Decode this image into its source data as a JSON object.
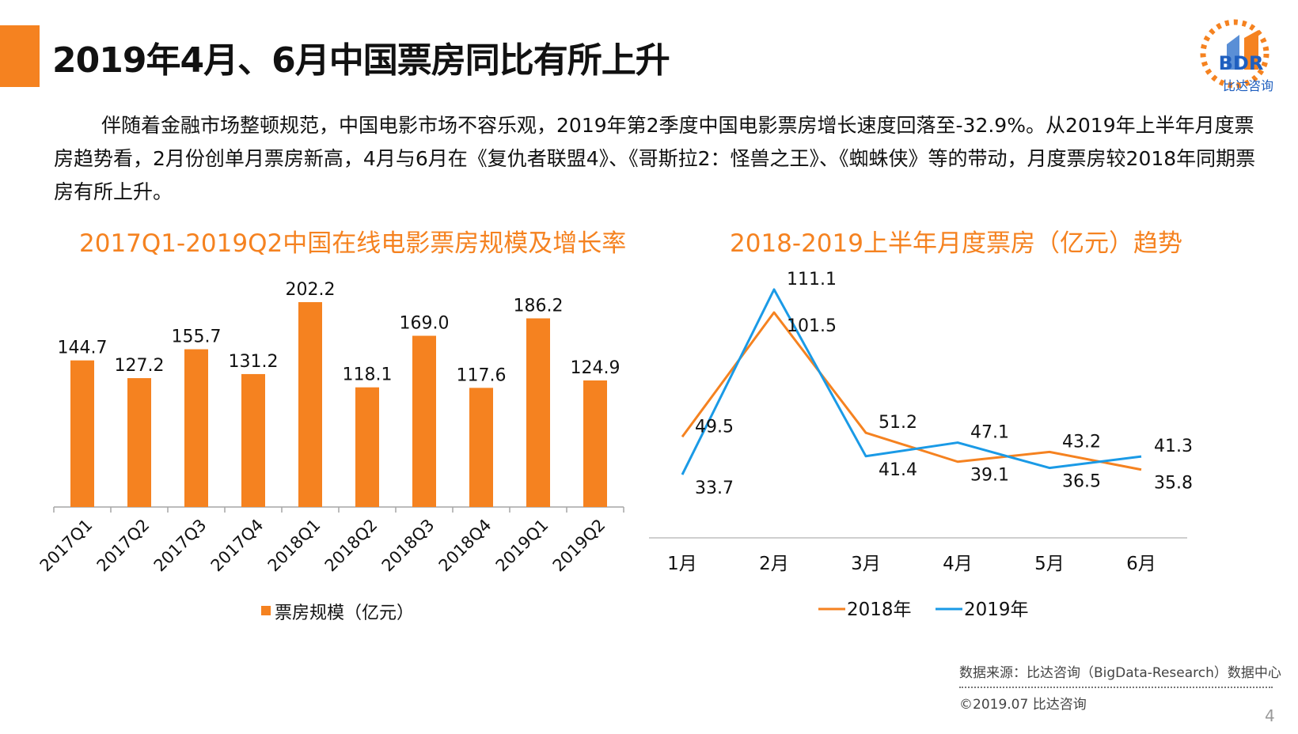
{
  "slide": {
    "title": "2019年4月、6月中国票房同比有所上升",
    "paragraph": "伴随着金融市场整顿规范，中国电影市场不容乐观，2019年第2季度中国电影票房增长速度回落至-32.9%。从2019年上半年月度票房趋势看，2月份创单月票房新高，4月与6月在《复仇者联盟4》、《哥斯拉2：怪兽之王》、《蜘蛛侠》等的带动，月度票房较2018年同期票房有所上升。",
    "logo_text": "BDR",
    "logo_sub": "比达咨询",
    "source": "数据来源：比达咨询（BigData-Research）数据中心",
    "copyright": "©2019.07 比达咨询",
    "page_number": "4",
    "accent_color": "#f58220",
    "blue_color": "#1a9ae6"
  },
  "chart_data": [
    {
      "type": "bar",
      "title": "2017Q1-2019Q2中国在线电影票房规模及增长率",
      "categories": [
        "2017Q1",
        "2017Q2",
        "2017Q3",
        "2017Q4",
        "2018Q1",
        "2018Q2",
        "2018Q3",
        "2018Q4",
        "2019Q1",
        "2019Q2"
      ],
      "series": [
        {
          "name": "票房规模（亿元）",
          "values": [
            144.7,
            127.2,
            155.7,
            131.2,
            202.2,
            118.1,
            169.0,
            117.6,
            186.2,
            124.9
          ],
          "color": "#f58220"
        }
      ],
      "value_labels": [
        "144.7",
        "127.2",
        "155.7",
        "131.2",
        "202.2",
        "118.1",
        "169.0",
        "117.6",
        "186.2",
        "124.9"
      ],
      "ylim": [
        0,
        202.2
      ],
      "legend": "bottom"
    },
    {
      "type": "line",
      "title": "2018-2019上半年月度票房（亿元）趋势",
      "categories": [
        "1月",
        "2月",
        "3月",
        "4月",
        "5月",
        "6月"
      ],
      "series": [
        {
          "name": "2018年",
          "values": [
            49.5,
            101.5,
            51.2,
            39.1,
            43.2,
            35.8
          ],
          "color": "#f58220",
          "labels": [
            "49.5",
            "101.5",
            "51.2",
            "39.1",
            "43.2",
            "35.8"
          ]
        },
        {
          "name": "2019年",
          "values": [
            33.7,
            111.1,
            41.4,
            47.1,
            36.5,
            41.3
          ],
          "color": "#1a9ae6",
          "labels": [
            "33.7",
            "111.1",
            "41.4",
            "47.1",
            "36.5",
            "41.3"
          ]
        }
      ],
      "ylim": [
        0,
        111.1
      ],
      "legend": "bottom"
    }
  ]
}
